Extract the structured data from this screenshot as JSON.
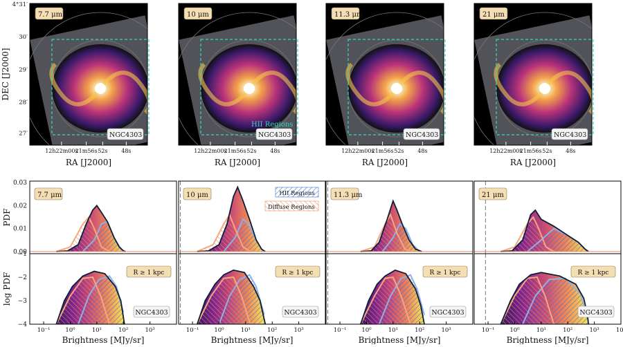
{
  "galaxy": "NGC4303",
  "colors": {
    "hii": "#3a6fd8",
    "diffuse": "#f08a5a",
    "hii_contour": "#34d6c4",
    "outline": "#0b1f3a",
    "label_box": "#f5deb3"
  },
  "image_panels": [
    {
      "band": "7.7 μm"
    },
    {
      "band": "10 μm"
    },
    {
      "band": "11.3 μm"
    },
    {
      "band": "21 μm"
    }
  ],
  "image_axes": {
    "ylabel": "DEC [J2000]",
    "xlabel": "RA [J2000]",
    "dec_ticks": [
      "4°31′",
      "30′",
      "29′",
      "28′",
      "27′"
    ],
    "ra_ticks": [
      "12h22m00s",
      "21m56s",
      "52s",
      "48s"
    ],
    "hii_legend": "HII Regions"
  },
  "chart_data": {
    "type": "area",
    "xlabel": "Brightness [MJy/sr]",
    "xscale": "log",
    "xlim": [
      0.03,
      10000
    ],
    "x_ticks": [
      "10⁻¹",
      "10⁰",
      "10¹",
      "10²",
      "10³",
      "10⁴"
    ],
    "pdf_ylabel": "PDF",
    "logpdf_ylabel": "log PDF",
    "pdf_ylim": [
      0,
      0.03
    ],
    "pdf_yticks": [
      "0.00",
      "0.01",
      "0.02",
      "0.03"
    ],
    "logpdf_ylim": [
      -4,
      -1
    ],
    "logpdf_yticks": [
      "−1",
      "−2",
      "−3",
      "−4"
    ],
    "legend": {
      "hii": "HII Regions",
      "diffuse": "Diffuse Regions"
    },
    "radius_label": "R ≥ 1 kpc",
    "panels": [
      {
        "band": "7.7 μm",
        "threshold": null,
        "total_pdf": [
          [
            0.3,
            0
          ],
          [
            0.8,
            0.0003
          ],
          [
            2,
            0.003
          ],
          [
            4,
            0.012
          ],
          [
            7,
            0.018
          ],
          [
            10,
            0.02
          ],
          [
            15,
            0.017
          ],
          [
            25,
            0.013
          ],
          [
            45,
            0.006
          ],
          [
            70,
            0.002
          ],
          [
            100,
            0.0003
          ],
          [
            120,
            0
          ]
        ],
        "hii_pdf": [
          [
            3,
            0
          ],
          [
            8,
            0.005
          ],
          [
            15,
            0.012
          ],
          [
            25,
            0.013
          ],
          [
            45,
            0.006
          ],
          [
            80,
            0.001
          ],
          [
            110,
            0
          ]
        ],
        "diffuse_pdf": [
          [
            0.3,
            0
          ],
          [
            1,
            0.002
          ],
          [
            3,
            0.012
          ],
          [
            5,
            0.015
          ],
          [
            8,
            0.01
          ],
          [
            15,
            0.002
          ],
          [
            30,
            0
          ]
        ],
        "total_logpdf": [
          [
            0.3,
            -4
          ],
          [
            0.6,
            -3
          ],
          [
            1.2,
            -2.4
          ],
          [
            3,
            -1.95
          ],
          [
            8,
            -1.75
          ],
          [
            20,
            -1.85
          ],
          [
            50,
            -2.4
          ],
          [
            80,
            -3
          ],
          [
            110,
            -4
          ]
        ],
        "hii_logpdf": [
          [
            2,
            -4
          ],
          [
            5,
            -2.8
          ],
          [
            12,
            -2.1
          ],
          [
            30,
            -1.95
          ],
          [
            55,
            -2.4
          ],
          [
            100,
            -3.5
          ]
        ],
        "diffuse_logpdf": [
          [
            0.3,
            -4
          ],
          [
            1,
            -2.8
          ],
          [
            3,
            -2.05
          ],
          [
            7,
            -2
          ],
          [
            14,
            -2.8
          ],
          [
            30,
            -4
          ]
        ]
      },
      {
        "band": "10 μm",
        "threshold": 0.035,
        "total_pdf": [
          [
            0.15,
            0
          ],
          [
            0.4,
            0.0003
          ],
          [
            1,
            0.003
          ],
          [
            2,
            0.012
          ],
          [
            3.5,
            0.024
          ],
          [
            5,
            0.028
          ],
          [
            8,
            0.022
          ],
          [
            15,
            0.013
          ],
          [
            25,
            0.005
          ],
          [
            40,
            0.001
          ],
          [
            55,
            0
          ]
        ],
        "hii_pdf": [
          [
            1.5,
            0
          ],
          [
            4,
            0.006
          ],
          [
            8,
            0.014
          ],
          [
            13,
            0.012
          ],
          [
            25,
            0.005
          ],
          [
            45,
            0
          ]
        ],
        "diffuse_pdf": [
          [
            0.15,
            0
          ],
          [
            0.6,
            0.003
          ],
          [
            1.5,
            0.012
          ],
          [
            2.5,
            0.016
          ],
          [
            4,
            0.01
          ],
          [
            8,
            0.002
          ],
          [
            15,
            0
          ]
        ],
        "total_logpdf": [
          [
            0.15,
            -4
          ],
          [
            0.3,
            -3
          ],
          [
            0.7,
            -2.3
          ],
          [
            1.5,
            -1.9
          ],
          [
            3.5,
            -1.7
          ],
          [
            9,
            -1.8
          ],
          [
            20,
            -2.4
          ],
          [
            35,
            -3
          ],
          [
            55,
            -4
          ]
        ],
        "hii_logpdf": [
          [
            1,
            -4
          ],
          [
            2.5,
            -2.8
          ],
          [
            6,
            -2.1
          ],
          [
            14,
            -1.9
          ],
          [
            25,
            -2.4
          ],
          [
            50,
            -3.6
          ]
        ],
        "diffuse_logpdf": [
          [
            0.15,
            -4
          ],
          [
            0.5,
            -2.8
          ],
          [
            1.5,
            -2.05
          ],
          [
            3.5,
            -2
          ],
          [
            7,
            -2.8
          ],
          [
            15,
            -4
          ]
        ]
      },
      {
        "band": "11.3 μm",
        "threshold": 0.035,
        "total_pdf": [
          [
            0.6,
            0
          ],
          [
            1.5,
            0.0003
          ],
          [
            3,
            0.004
          ],
          [
            6,
            0.014
          ],
          [
            10,
            0.022
          ],
          [
            14,
            0.018
          ],
          [
            22,
            0.012
          ],
          [
            40,
            0.005
          ],
          [
            70,
            0.001
          ],
          [
            120,
            0
          ]
        ],
        "hii_pdf": [
          [
            4,
            0
          ],
          [
            10,
            0.006
          ],
          [
            18,
            0.012
          ],
          [
            30,
            0.01
          ],
          [
            55,
            0.003
          ],
          [
            100,
            0
          ]
        ],
        "diffuse_pdf": [
          [
            0.6,
            0
          ],
          [
            2,
            0.002
          ],
          [
            5,
            0.012
          ],
          [
            8,
            0.016
          ],
          [
            14,
            0.008
          ],
          [
            28,
            0.001
          ],
          [
            50,
            0
          ]
        ],
        "total_logpdf": [
          [
            0.6,
            -4
          ],
          [
            1.2,
            -3
          ],
          [
            2.5,
            -2.3
          ],
          [
            5,
            -1.95
          ],
          [
            12,
            -1.7
          ],
          [
            30,
            -1.85
          ],
          [
            70,
            -2.5
          ],
          [
            110,
            -3.2
          ],
          [
            150,
            -4
          ]
        ],
        "hii_logpdf": [
          [
            3,
            -4
          ],
          [
            8,
            -2.8
          ],
          [
            20,
            -2.05
          ],
          [
            45,
            -1.9
          ],
          [
            80,
            -2.5
          ],
          [
            150,
            -3.6
          ]
        ],
        "diffuse_logpdf": [
          [
            0.6,
            -4
          ],
          [
            2,
            -2.8
          ],
          [
            5,
            -2.05
          ],
          [
            10,
            -2
          ],
          [
            20,
            -2.8
          ],
          [
            45,
            -4
          ]
        ]
      },
      {
        "band": "21 μm",
        "threshold": 0.08,
        "total_pdf": [
          [
            0.3,
            0
          ],
          [
            0.8,
            0.0003
          ],
          [
            2,
            0.005
          ],
          [
            4,
            0.016
          ],
          [
            6,
            0.018
          ],
          [
            10,
            0.014
          ],
          [
            30,
            0.011
          ],
          [
            100,
            0.007
          ],
          [
            250,
            0.004
          ],
          [
            450,
            0.001
          ],
          [
            600,
            0
          ]
        ],
        "hii_pdf": [
          [
            3,
            0
          ],
          [
            10,
            0.005
          ],
          [
            30,
            0.01
          ],
          [
            100,
            0.007
          ],
          [
            250,
            0.004
          ],
          [
            450,
            0.001
          ],
          [
            600,
            0
          ]
        ],
        "diffuse_pdf": [
          [
            0.3,
            0
          ],
          [
            1,
            0.002
          ],
          [
            3,
            0.012
          ],
          [
            5,
            0.015
          ],
          [
            8,
            0.01
          ],
          [
            15,
            0.002
          ],
          [
            30,
            0
          ]
        ],
        "total_logpdf": [
          [
            0.3,
            -4
          ],
          [
            0.7,
            -3
          ],
          [
            1.5,
            -2.3
          ],
          [
            4,
            -1.9
          ],
          [
            10,
            -1.8
          ],
          [
            50,
            -1.95
          ],
          [
            200,
            -2.3
          ],
          [
            400,
            -2.9
          ],
          [
            550,
            -3.6
          ],
          [
            600,
            -4
          ]
        ],
        "hii_logpdf": [
          [
            2,
            -4
          ],
          [
            6,
            -2.8
          ],
          [
            20,
            -2.1
          ],
          [
            80,
            -2.05
          ],
          [
            300,
            -2.7
          ],
          [
            550,
            -3.8
          ]
        ],
        "diffuse_logpdf": [
          [
            0.3,
            -4
          ],
          [
            1,
            -2.8
          ],
          [
            3,
            -2.05
          ],
          [
            7,
            -2
          ],
          [
            14,
            -2.8
          ],
          [
            30,
            -4
          ]
        ]
      }
    ]
  }
}
